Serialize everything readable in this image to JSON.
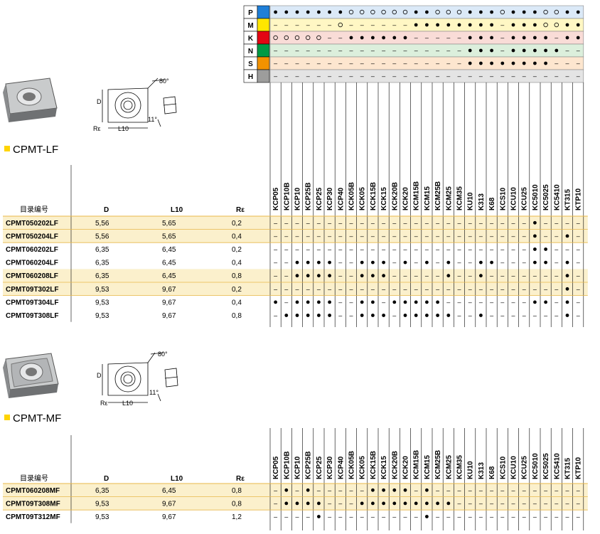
{
  "grades": [
    "KCP05",
    "KCP10B",
    "KCP10",
    "KCP25B",
    "KCP25",
    "KCP30",
    "KCP40",
    "KCK05B",
    "KCK05",
    "KCK15B",
    "KCK15",
    "KCK20B",
    "KCK20",
    "KCM15B",
    "KCM15",
    "KCM25B",
    "KCM25",
    "KCM35",
    "KU10",
    "K313",
    "K68",
    "KCS10",
    "KCU10",
    "KCU25",
    "KC5010",
    "KC5025",
    "KC5410",
    "KT315",
    "KTP10"
  ],
  "material_groups": [
    {
      "code": "P",
      "color": "#1f7fd8",
      "row_bg": "#dbe9f7",
      "marks": "f f f f f f f o o o o o o f f o o o f f f o f f f o o f f"
    },
    {
      "code": "M",
      "color": "#ffe600",
      "row_bg": "#fff7c4",
      "marks": "- - - - - - o - - - - - - f f f f f f f f - f f f o o f f"
    },
    {
      "code": "K",
      "color": "#e30613",
      "row_bg": "#f9dcd7",
      "marks": "o o o o o - - f f f f f f - - - - - f f f - f f f f - f f"
    },
    {
      "code": "N",
      "color": "#009a44",
      "row_bg": "#dcefdc",
      "marks": "- - - - - - - - - - - - - - - - - - f f f - f f f f f - -"
    },
    {
      "code": "S",
      "color": "#f39200",
      "row_bg": "#fde6cf",
      "marks": "- - - - - - - - - - - - - - - - - - f f f f f f f f - - -"
    },
    {
      "code": "H",
      "color": "#9d9d9c",
      "row_bg": "#e4e4e4",
      "marks": "- - - - - - - - - - - - - - - - - - - - - - - - - - - - -"
    }
  ],
  "diagram_labels": {
    "angle": "80°",
    "d": "D",
    "l10": "L10",
    "re": "Rε",
    "clearance": "11°"
  },
  "sections": [
    {
      "title": "CPMT-LF",
      "headers": {
        "part": "目录编号",
        "d": "D",
        "l10": "L10",
        "re": "Rε"
      },
      "rows": [
        {
          "part": "CPMT050202LF",
          "d": "5,56",
          "l10": "5,65",
          "re": "0,2",
          "highlight": true,
          "marks": "- - - - - - - - - - - - - - - - - - - - - - - - f - - - -"
        },
        {
          "part": "CPMT050204LF",
          "d": "5,56",
          "l10": "5,65",
          "re": "0,4",
          "highlight": true,
          "marks": "- - - - - - - - - - - - - - - - - - - - - - - - f - - f -"
        },
        {
          "part": "CPMT060202LF",
          "d": "6,35",
          "l10": "6,45",
          "re": "0,2",
          "highlight": false,
          "marks": "- - - - - - - - - - - - - - - - - - - - - - - - f f - - -"
        },
        {
          "part": "CPMT060204LF",
          "d": "6,35",
          "l10": "6,45",
          "re": "0,4",
          "highlight": false,
          "marks": "- - f f f f - - f f f - f - f - f - - f f - - - f f - f -"
        },
        {
          "part": "CPMT060208LF",
          "d": "6,35",
          "l10": "6,45",
          "re": "0,8",
          "highlight": true,
          "marks": "- - f f f f - - f f f - - - - - f - - f - - - - - - - f -"
        },
        {
          "part": "CPMT09T302LF",
          "d": "9,53",
          "l10": "9,67",
          "re": "0,2",
          "highlight": true,
          "marks": "- - - - - - - - - - - - - - - - - - - - - - - - - - - f -"
        },
        {
          "part": "CPMT09T304LF",
          "d": "9,53",
          "l10": "9,67",
          "re": "0,4",
          "highlight": false,
          "marks": "f - f f f f - - f f - f f f f f - - - - - - - - f f - f -"
        },
        {
          "part": "CPMT09T308LF",
          "d": "9,53",
          "l10": "9,67",
          "re": "0,8",
          "highlight": false,
          "marks": "- f f f f f - - f f f - f f f f f - - f - - - - - - - f -"
        }
      ]
    },
    {
      "title": "CPMT-MF",
      "headers": {
        "part": "目录编号",
        "d": "D",
        "l10": "L10",
        "re": "Rε"
      },
      "rows": [
        {
          "part": "CPMT060208MF",
          "d": "6,35",
          "l10": "6,45",
          "re": "0,8",
          "highlight": true,
          "marks": "- f - f - - - - - f f f f - f - - - - - - - - - - - - - -"
        },
        {
          "part": "CPMT09T308MF",
          "d": "9,53",
          "l10": "9,67",
          "re": "0,8",
          "highlight": true,
          "marks": "- f f f f - - - f f f f f f f f f - - - - - - - - - - - -"
        },
        {
          "part": "CPMT09T312MF",
          "d": "9,53",
          "l10": "9,67",
          "re": "1,2",
          "highlight": false,
          "marks": "- - - - f - - - - - - - - - f - - - - - - - - - - - - - -"
        }
      ]
    }
  ],
  "style": {
    "accent_bullet": "#ffd400",
    "highlight_row": "#fbf0cc",
    "rule_line": "#e8b84a"
  }
}
